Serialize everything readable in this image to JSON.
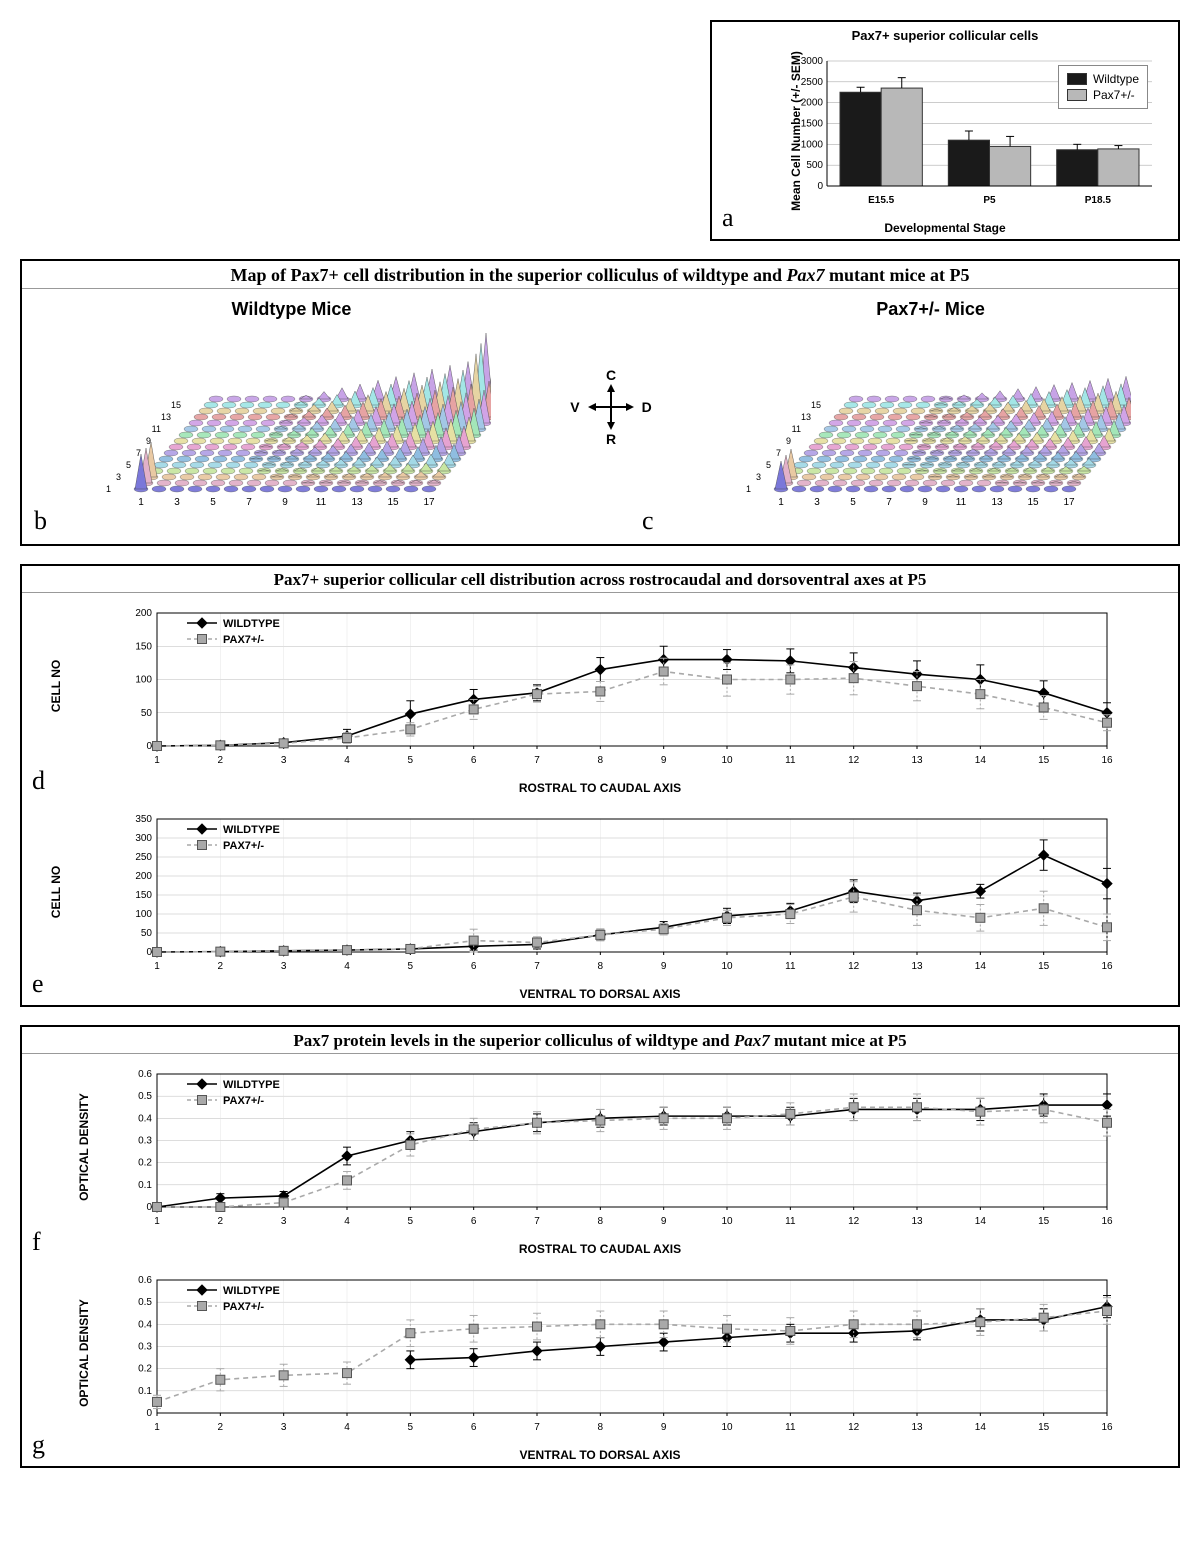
{
  "panel_a": {
    "label": "a",
    "title": "Pax7+ superior collicular cells",
    "ylabel": "Mean Cell Number\n(+/- SEM)",
    "xlabel": "Developmental Stage",
    "categories": [
      "E15.5",
      "P5",
      "P18.5"
    ],
    "series": [
      {
        "name": "Wildtype",
        "color": "#1a1a1a",
        "values": [
          2250,
          1100,
          870
        ],
        "err": [
          120,
          220,
          130
        ]
      },
      {
        "name": "Pax7+/-",
        "color": "#b8b8b8",
        "values": [
          2350,
          950,
          890
        ],
        "err": [
          250,
          240,
          80
        ]
      }
    ],
    "ylim": [
      0,
      3000
    ],
    "ytick_step": 500,
    "title_fontsize": 13,
    "label_fontsize": 11,
    "tick_fontsize": 10,
    "background": "#ffffff",
    "grid_color": "#9a9a9a",
    "bar_width": 0.38
  },
  "panel_b": {
    "box_title": "Map of Pax7+ cell distribution in the superior colliculus of wildtype and Pax7 mutant mice at P5",
    "wildtype_label": "Wildtype Mice",
    "mutant_label": "Pax7+/- Mice",
    "label_b": "b",
    "label_c": "c",
    "compass": {
      "top": "C",
      "bottom": "R",
      "left": "V",
      "right": "D"
    },
    "x_ticks": [
      1,
      3,
      5,
      7,
      9,
      11,
      13,
      15,
      17
    ],
    "y_ticks": [
      1,
      3,
      5,
      7,
      9,
      11,
      13,
      15
    ],
    "row_colors": [
      "#7a77d9",
      "#e2b1c9",
      "#e9c9a3",
      "#c8e6a3",
      "#a3d9e6",
      "#8fbde0",
      "#b3a3e6",
      "#e6a3d1",
      "#e6e0a3",
      "#a3e6b8",
      "#a3c7e6",
      "#d1a3e6",
      "#e6a3a3",
      "#e6d4a3",
      "#a3e6e6",
      "#c7a3e6",
      "#e6b7a3"
    ],
    "wt_grid_rows": 17,
    "wt_grid_cols": 16,
    "z_max": 6,
    "wt_data_note": "cone-heights per cell; tallest at dorsal (x≈17) caudal for WT, flatter for mutant"
  },
  "panel_d": {
    "title": "Pax7+ superior collicular cell distribution across rostrocaudal and dorsoventral axes at P5",
    "label": "d",
    "ylabel": "CELL NO",
    "xlabel": "ROSTRAL TO CAUDAL AXIS",
    "x": [
      1,
      2,
      3,
      4,
      5,
      6,
      7,
      8,
      9,
      10,
      11,
      12,
      13,
      14,
      15,
      16
    ],
    "ylim": [
      0,
      200
    ],
    "ytick_step": 50,
    "series": [
      {
        "name": "WILDTYPE",
        "marker": "diamond",
        "color": "#000000",
        "dash": "solid",
        "y": [
          0,
          1,
          5,
          15,
          48,
          70,
          80,
          115,
          130,
          130,
          128,
          118,
          108,
          100,
          80,
          50
        ],
        "err": [
          2,
          3,
          5,
          10,
          20,
          15,
          12,
          18,
          20,
          15,
          18,
          22,
          20,
          22,
          18,
          15
        ]
      },
      {
        "name": "PAX7+/-",
        "marker": "square",
        "color": "#a9a9a9",
        "dash": "dash",
        "y": [
          0,
          1,
          4,
          12,
          25,
          55,
          78,
          82,
          112,
          100,
          100,
          102,
          90,
          78,
          58,
          35
        ],
        "err": [
          2,
          3,
          5,
          8,
          10,
          15,
          12,
          15,
          20,
          25,
          22,
          25,
          22,
          22,
          18,
          12
        ]
      }
    ],
    "label_fontsize": 12,
    "tick_fontsize": 10,
    "background": "#ffffff",
    "grid_color": "#aaaaaa"
  },
  "panel_e": {
    "label": "e",
    "ylabel": "CELL NO",
    "xlabel": "VENTRAL TO DORSAL AXIS",
    "x": [
      1,
      2,
      3,
      4,
      5,
      6,
      7,
      8,
      9,
      10,
      11,
      12,
      13,
      14,
      15,
      16
    ],
    "ylim": [
      0,
      350
    ],
    "ytick_step": 50,
    "series": [
      {
        "name": "WILDTYPE",
        "marker": "diamond",
        "color": "#000000",
        "dash": "solid",
        "y": [
          0,
          1,
          3,
          5,
          8,
          15,
          20,
          45,
          65,
          95,
          108,
          160,
          135,
          160,
          255,
          180
        ],
        "err": [
          2,
          3,
          4,
          5,
          8,
          10,
          12,
          15,
          15,
          20,
          20,
          30,
          20,
          18,
          40,
          40
        ]
      },
      {
        "name": "PAX7+/-",
        "marker": "square",
        "color": "#a9a9a9",
        "dash": "dash",
        "y": [
          0,
          1,
          3,
          5,
          8,
          30,
          25,
          45,
          60,
          90,
          100,
          145,
          110,
          90,
          115,
          65
        ],
        "err": [
          2,
          3,
          4,
          5,
          8,
          30,
          15,
          15,
          15,
          20,
          25,
          40,
          40,
          35,
          45,
          35
        ]
      }
    ]
  },
  "panel_f": {
    "title": "Pax7 protein levels in the superior colliculus of wildtype and Pax7 mutant mice at P5",
    "label": "f",
    "ylabel": "OPTICAL DENSITY",
    "xlabel": "ROSTRAL TO CAUDAL AXIS",
    "x": [
      1,
      2,
      3,
      4,
      5,
      6,
      7,
      8,
      9,
      10,
      11,
      12,
      13,
      14,
      15,
      16
    ],
    "ylim": [
      0,
      0.6
    ],
    "ytick_step": 0.1,
    "series": [
      {
        "name": "WILDTYPE",
        "marker": "diamond",
        "color": "#000000",
        "dash": "solid",
        "y": [
          0,
          0.04,
          0.05,
          0.23,
          0.3,
          0.34,
          0.38,
          0.4,
          0.41,
          0.41,
          0.41,
          0.44,
          0.44,
          0.44,
          0.46,
          0.46
        ],
        "err": [
          0.01,
          0.02,
          0.02,
          0.04,
          0.04,
          0.04,
          0.04,
          0.04,
          0.04,
          0.04,
          0.04,
          0.05,
          0.05,
          0.05,
          0.05,
          0.05
        ]
      },
      {
        "name": "PAX7+/-",
        "marker": "square",
        "color": "#a9a9a9",
        "dash": "dash",
        "y": [
          0,
          0,
          0.02,
          0.12,
          0.28,
          0.35,
          0.38,
          0.39,
          0.4,
          0.4,
          0.42,
          0.45,
          0.45,
          0.43,
          0.44,
          0.38
        ],
        "err": [
          0.01,
          0.01,
          0.02,
          0.04,
          0.05,
          0.05,
          0.05,
          0.05,
          0.05,
          0.05,
          0.05,
          0.06,
          0.06,
          0.06,
          0.06,
          0.06
        ]
      }
    ]
  },
  "panel_g": {
    "label": "g",
    "ylabel": "OPTICAL DENSITY",
    "xlabel": "VENTRAL TO DORSAL AXIS",
    "x": [
      1,
      2,
      3,
      4,
      5,
      6,
      7,
      8,
      9,
      10,
      11,
      12,
      13,
      14,
      15,
      16
    ],
    "ylim": [
      0,
      0.6
    ],
    "ytick_step": 0.1,
    "series": [
      {
        "name": "WILDTYPE",
        "marker": "diamond",
        "color": "#000000",
        "dash": "solid",
        "y": [
          null,
          null,
          null,
          null,
          0.24,
          0.25,
          0.28,
          0.3,
          0.32,
          0.34,
          0.36,
          0.36,
          0.37,
          0.42,
          0.42,
          0.48
        ],
        "err": [
          null,
          null,
          null,
          null,
          0.04,
          0.04,
          0.04,
          0.04,
          0.04,
          0.04,
          0.04,
          0.04,
          0.04,
          0.05,
          0.05,
          0.05
        ]
      },
      {
        "name": "PAX7+/-",
        "marker": "square",
        "color": "#a9a9a9",
        "dash": "dash",
        "y": [
          0.05,
          0.15,
          0.17,
          0.18,
          0.36,
          0.38,
          0.39,
          0.4,
          0.4,
          0.38,
          0.37,
          0.4,
          0.4,
          0.41,
          0.43,
          0.46
        ],
        "err": [
          0.03,
          0.05,
          0.05,
          0.05,
          0.06,
          0.06,
          0.06,
          0.06,
          0.06,
          0.06,
          0.06,
          0.06,
          0.06,
          0.06,
          0.06,
          0.06
        ]
      }
    ]
  },
  "fonts": {
    "panel_title": 18,
    "panel_label": 26
  }
}
